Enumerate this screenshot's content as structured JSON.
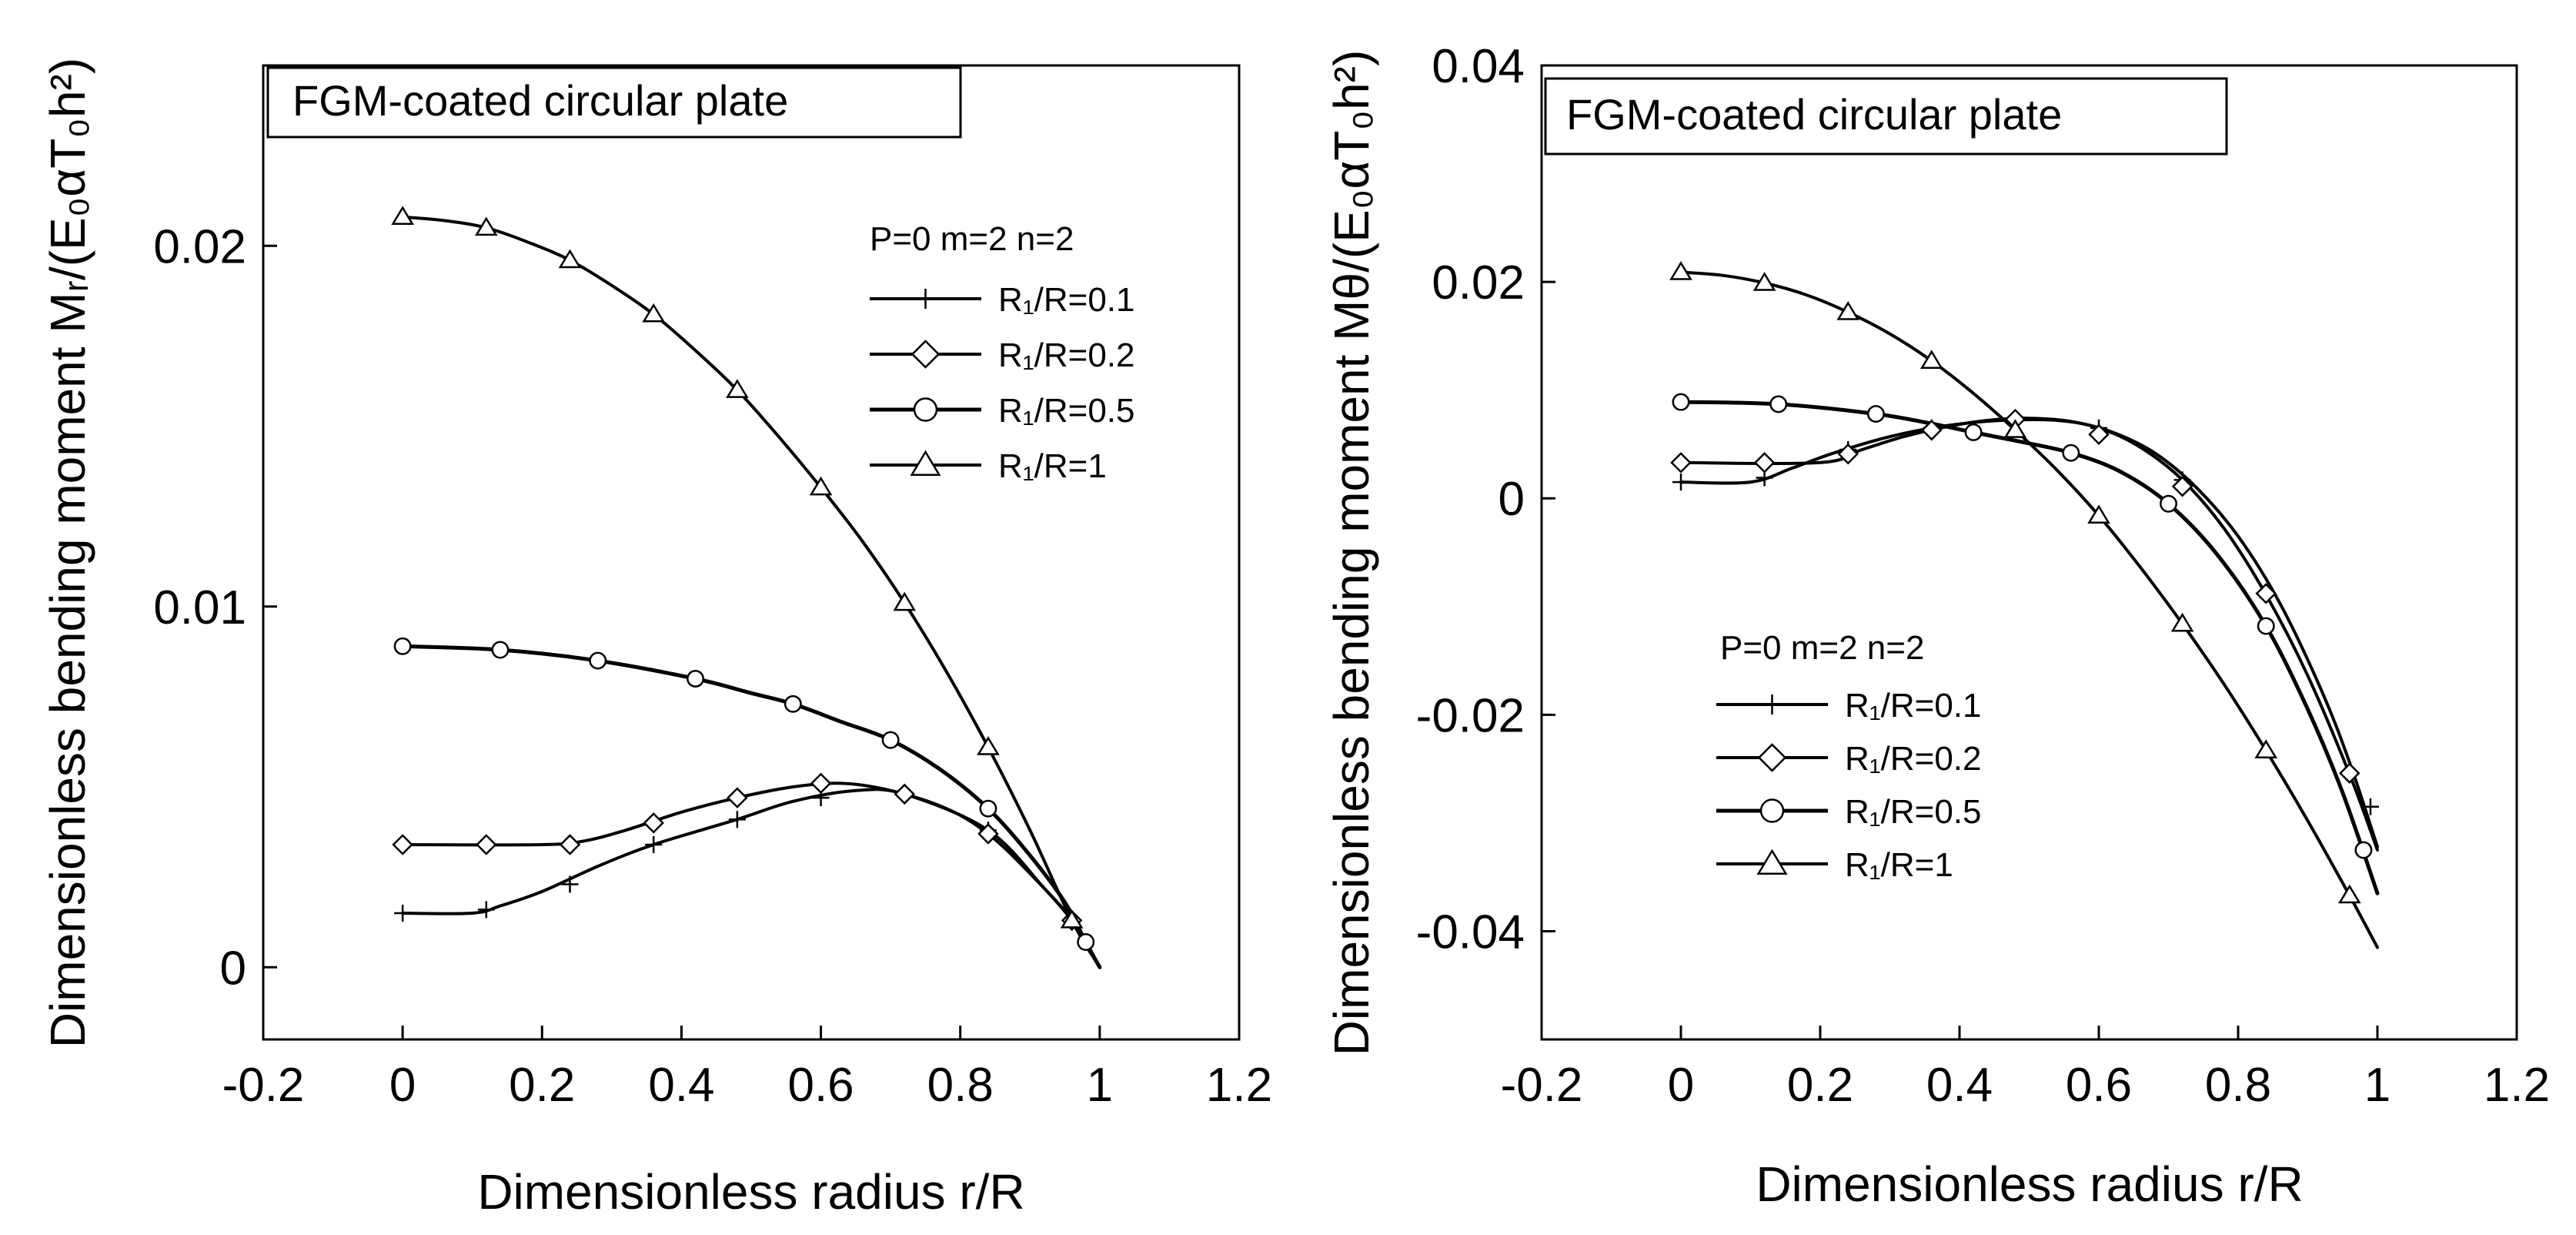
{
  "chart_data": [
    {
      "type": "line",
      "title": "FGM-coated circular plate",
      "xlabel": "Dimensionless radius  r/R",
      "ylabel": "Dimensionless bending moment Mᵣ/(E₀αT₀h²)",
      "xlim": [
        -0.2,
        1.2
      ],
      "ylim": [
        -0.002,
        0.025
      ],
      "xticks": [
        "-0.2",
        "0",
        "0.2",
        "0.4",
        "0.6",
        "0.8",
        "1",
        "1.2"
      ],
      "yticks": [
        "0",
        "0.01",
        "0.02"
      ],
      "ytick_values": [
        0,
        0.01,
        0.02
      ],
      "grid": false,
      "legend_position": "right",
      "legend_header": "P=0  m=2  n=2",
      "series": [
        {
          "name": "R₁/R=0.1",
          "marker": "plus",
          "points": [
            [
              0,
              0.0015
            ],
            [
              0.1,
              0.0015
            ],
            [
              0.14,
              0.0017
            ],
            [
              0.2,
              0.0021
            ],
            [
              0.28,
              0.0028
            ],
            [
              0.36,
              0.0034
            ],
            [
              0.48,
              0.0041
            ],
            [
              0.56,
              0.0046
            ],
            [
              0.65,
              0.0049
            ],
            [
              0.72,
              0.0048
            ],
            [
              0.84,
              0.0038
            ],
            [
              0.92,
              0.0022
            ],
            [
              0.96,
              0.0013
            ],
            [
              1.0,
              0.0
            ]
          ],
          "markers": [
            [
              0,
              0.0015
            ],
            [
              0.12,
              0.0016
            ],
            [
              0.24,
              0.0023
            ],
            [
              0.36,
              0.0034
            ],
            [
              0.48,
              0.0041
            ],
            [
              0.6,
              0.0047
            ],
            [
              0.72,
              0.0048
            ],
            [
              0.84,
              0.0038
            ],
            [
              0.96,
              0.0013
            ]
          ]
        },
        {
          "name": "R₁/R=0.2",
          "marker": "diamond",
          "points": [
            [
              0,
              0.0034
            ],
            [
              0.2,
              0.0034
            ],
            [
              0.26,
              0.0035
            ],
            [
              0.32,
              0.0038
            ],
            [
              0.4,
              0.0043
            ],
            [
              0.48,
              0.0047
            ],
            [
              0.56,
              0.005
            ],
            [
              0.63,
              0.0051
            ],
            [
              0.7,
              0.0049
            ],
            [
              0.78,
              0.0044
            ],
            [
              0.84,
              0.0037
            ],
            [
              0.9,
              0.0026
            ],
            [
              0.96,
              0.0013
            ],
            [
              1.0,
              0.0
            ]
          ],
          "markers": [
            [
              0,
              0.0034
            ],
            [
              0.12,
              0.0034
            ],
            [
              0.24,
              0.0034
            ],
            [
              0.36,
              0.004
            ],
            [
              0.48,
              0.0047
            ],
            [
              0.6,
              0.0051
            ],
            [
              0.72,
              0.0048
            ],
            [
              0.84,
              0.0037
            ],
            [
              0.96,
              0.0013
            ]
          ]
        },
        {
          "name": "R₁/R=0.5",
          "marker": "circle",
          "points": [
            [
              0,
              0.0089
            ],
            [
              0.14,
              0.0088
            ],
            [
              0.28,
              0.0085
            ],
            [
              0.42,
              0.008
            ],
            [
              0.5,
              0.0076
            ],
            [
              0.56,
              0.0073
            ],
            [
              0.63,
              0.0068
            ],
            [
              0.7,
              0.0063
            ],
            [
              0.77,
              0.0055
            ],
            [
              0.84,
              0.0044
            ],
            [
              0.9,
              0.0031
            ],
            [
              0.95,
              0.0018
            ],
            [
              0.98,
              0.0007
            ],
            [
              1.0,
              0.0
            ]
          ],
          "markers": [
            [
              0,
              0.0089
            ],
            [
              0.14,
              0.0088
            ],
            [
              0.28,
              0.0085
            ],
            [
              0.42,
              0.008
            ],
            [
              0.56,
              0.0073
            ],
            [
              0.7,
              0.0063
            ],
            [
              0.84,
              0.0044
            ],
            [
              0.98,
              0.0007
            ]
          ]
        },
        {
          "name": "R₁/R=1",
          "marker": "triangle",
          "points": [
            [
              0,
              0.0208
            ],
            [
              0.06,
              0.0207
            ],
            [
              0.12,
              0.0205
            ],
            [
              0.18,
              0.0201
            ],
            [
              0.24,
              0.0196
            ],
            [
              0.3,
              0.0189
            ],
            [
              0.36,
              0.0181
            ],
            [
              0.42,
              0.0171
            ],
            [
              0.48,
              0.016
            ],
            [
              0.54,
              0.0147
            ],
            [
              0.6,
              0.0133
            ],
            [
              0.66,
              0.0118
            ],
            [
              0.72,
              0.0101
            ],
            [
              0.78,
              0.0082
            ],
            [
              0.84,
              0.0061
            ],
            [
              0.9,
              0.0038
            ],
            [
              0.96,
              0.0013
            ],
            [
              1.0,
              0.0
            ]
          ],
          "markers": [
            [
              0,
              0.0208
            ],
            [
              0.12,
              0.0205
            ],
            [
              0.24,
              0.0196
            ],
            [
              0.36,
              0.0181
            ],
            [
              0.48,
              0.016
            ],
            [
              0.6,
              0.0133
            ],
            [
              0.72,
              0.0101
            ],
            [
              0.84,
              0.0061
            ],
            [
              0.96,
              0.0013
            ]
          ]
        }
      ]
    },
    {
      "type": "line",
      "title": "FGM-coated circular plate",
      "xlabel": "Dimensionless radius  r/R",
      "ylabel": "Dimensionless bending moment Mθ/(E₀αT₀h²)",
      "xlim": [
        -0.2,
        1.2
      ],
      "ylim": [
        -0.05,
        0.04
      ],
      "xticks": [
        "-0.2",
        "0",
        "0.2",
        "0.4",
        "0.6",
        "0.8",
        "1",
        "1.2"
      ],
      "yticks": [
        "-0.04",
        "-0.02",
        "0",
        "0.02",
        "0.04"
      ],
      "ytick_values": [
        -0.04,
        -0.02,
        0,
        0.02,
        0.04
      ],
      "grid": false,
      "legend_position": "bottom-left",
      "legend_header": "P=0  m=2  n=2",
      "series": [
        {
          "name": "R₁/R=0.1",
          "marker": "plus",
          "points": [
            [
              0,
              0.0015
            ],
            [
              0.1,
              0.0015
            ],
            [
              0.16,
              0.0028
            ],
            [
              0.22,
              0.0042
            ],
            [
              0.3,
              0.0057
            ],
            [
              0.38,
              0.0067
            ],
            [
              0.46,
              0.0072
            ],
            [
              0.54,
              0.0072
            ],
            [
              0.6,
              0.0065
            ],
            [
              0.66,
              0.0047
            ],
            [
              0.72,
              0.0017
            ],
            [
              0.78,
              -0.0028
            ],
            [
              0.84,
              -0.0089
            ],
            [
              0.9,
              -0.0164
            ],
            [
              0.96,
              -0.0255
            ],
            [
              1.0,
              -0.0325
            ]
          ],
          "markers": [
            [
              0,
              0.0015
            ],
            [
              0.12,
              0.0019
            ],
            [
              0.24,
              0.0045
            ],
            [
              0.36,
              0.0065
            ],
            [
              0.48,
              0.0072
            ],
            [
              0.6,
              0.0065
            ],
            [
              0.72,
              0.0017
            ],
            [
              0.84,
              -0.0089
            ],
            [
              0.96,
              -0.0255
            ],
            [
              0.99,
              -0.0285
            ]
          ]
        },
        {
          "name": "R₁/R=0.2",
          "marker": "diamond",
          "points": [
            [
              0,
              0.0033
            ],
            [
              0.2,
              0.0033
            ],
            [
              0.26,
              0.0045
            ],
            [
              0.32,
              0.0057
            ],
            [
              0.38,
              0.0066
            ],
            [
              0.44,
              0.0072
            ],
            [
              0.5,
              0.0074
            ],
            [
              0.56,
              0.0071
            ],
            [
              0.62,
              0.0061
            ],
            [
              0.68,
              0.0042
            ],
            [
              0.74,
              0.001
            ],
            [
              0.8,
              -0.0035
            ],
            [
              0.86,
              -0.0097
            ],
            [
              0.92,
              -0.0178
            ],
            [
              0.96,
              -0.0244
            ],
            [
              1.0,
              -0.0322
            ]
          ],
          "markers": [
            [
              0,
              0.0033
            ],
            [
              0.12,
              0.0033
            ],
            [
              0.24,
              0.0041
            ],
            [
              0.36,
              0.0063
            ],
            [
              0.48,
              0.0073
            ],
            [
              0.6,
              0.0059
            ],
            [
              0.72,
              0.0011
            ],
            [
              0.84,
              -0.0088
            ],
            [
              0.96,
              -0.0254
            ]
          ]
        },
        {
          "name": "R₁/R=0.5",
          "marker": "circle",
          "points": [
            [
              0,
              0.0089
            ],
            [
              0.14,
              0.0087
            ],
            [
              0.28,
              0.0078
            ],
            [
              0.36,
              0.0069
            ],
            [
              0.42,
              0.0061
            ],
            [
              0.49,
              0.0052
            ],
            [
              0.56,
              0.0042
            ],
            [
              0.63,
              0.0025
            ],
            [
              0.7,
              -0.0005
            ],
            [
              0.77,
              -0.0052
            ],
            [
              0.84,
              -0.0118
            ],
            [
              0.9,
              -0.0195
            ],
            [
              0.95,
              -0.0272
            ],
            [
              1.0,
              -0.0365
            ]
          ],
          "markers": [
            [
              0,
              0.0089
            ],
            [
              0.14,
              0.0087
            ],
            [
              0.28,
              0.0078
            ],
            [
              0.42,
              0.0061
            ],
            [
              0.56,
              0.0042
            ],
            [
              0.7,
              -0.0005
            ],
            [
              0.84,
              -0.0118
            ],
            [
              0.98,
              -0.0325
            ]
          ]
        },
        {
          "name": "R₁/R=1",
          "marker": "triangle",
          "points": [
            [
              0,
              0.0209
            ],
            [
              0.06,
              0.0206
            ],
            [
              0.12,
              0.0199
            ],
            [
              0.18,
              0.0188
            ],
            [
              0.24,
              0.0172
            ],
            [
              0.3,
              0.0152
            ],
            [
              0.36,
              0.0127
            ],
            [
              0.42,
              0.0097
            ],
            [
              0.48,
              0.0063
            ],
            [
              0.54,
              0.0026
            ],
            [
              0.6,
              -0.0016
            ],
            [
              0.66,
              -0.0064
            ],
            [
              0.72,
              -0.0116
            ],
            [
              0.78,
              -0.0172
            ],
            [
              0.84,
              -0.0233
            ],
            [
              0.9,
              -0.0298
            ],
            [
              0.96,
              -0.0367
            ],
            [
              1.0,
              -0.0415
            ]
          ],
          "markers": [
            [
              0,
              0.0209
            ],
            [
              0.12,
              0.0199
            ],
            [
              0.24,
              0.0172
            ],
            [
              0.36,
              0.0127
            ],
            [
              0.48,
              0.0063
            ],
            [
              0.6,
              -0.0016
            ],
            [
              0.72,
              -0.0116
            ],
            [
              0.84,
              -0.0233
            ],
            [
              0.96,
              -0.0367
            ]
          ]
        }
      ]
    }
  ]
}
